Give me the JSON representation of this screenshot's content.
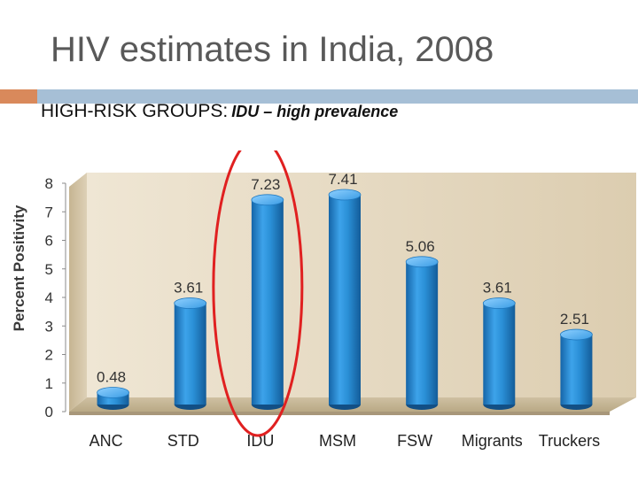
{
  "title": "HIV estimates in India, 2008",
  "subtitle": {
    "main": "HIGH-RISK GROUPS:",
    "emphasis": "IDU – high prevalence"
  },
  "colors": {
    "bar": "#2a8fd6",
    "highlight_ellipse": "#e02020",
    "plot_wall": "#e8dcc6",
    "accent_orange": "#d9895b",
    "accent_blue": "#a6bfd6"
  },
  "chart_data": {
    "type": "bar",
    "categories": [
      "ANC",
      "STD",
      "IDU",
      "MSM",
      "FSW",
      "Migrants",
      "Truckers"
    ],
    "values": [
      0.48,
      3.61,
      7.23,
      7.41,
      5.06,
      3.61,
      2.51
    ],
    "value_labels": [
      "0.48",
      "3.61",
      "7.23",
      "7.41",
      "5.06",
      "3.61",
      "2.51"
    ],
    "ylabel": "Percent Positivity",
    "ylim": [
      0,
      8
    ],
    "yticks": [
      "0",
      "1",
      "2",
      "3",
      "4",
      "5",
      "6",
      "7",
      "8"
    ],
    "highlighted_category": "IDU",
    "style": "3d-cylinder"
  }
}
